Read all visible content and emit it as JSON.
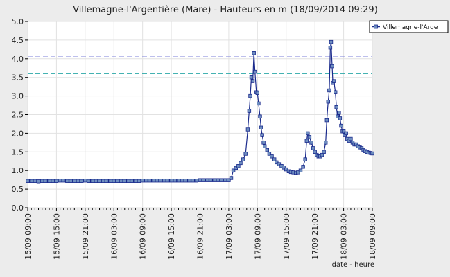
{
  "chart_data": {
    "type": "line",
    "title": "Villemagne-l'Argentière (Mare) - Hauteurs en m (18/09/2014 09:29)",
    "xlabel": "date - heure",
    "ylabel": "",
    "ylim": [
      0.0,
      5.0
    ],
    "y_ticks": [
      "0.0",
      "0.5",
      "1.0",
      "1.5",
      "2.0",
      "2.5",
      "3.0",
      "3.5",
      "4.0",
      "4.5",
      "5.0"
    ],
    "x_ticks": [
      "15/09 09:00",
      "15/09 15:00",
      "15/09 21:00",
      "16/09 03:00",
      "16/09 09:00",
      "16/09 15:00",
      "16/09 21:00",
      "17/09 03:00",
      "17/09 09:00",
      "17/09 15:00",
      "17/09 21:00",
      "18/09 03:00",
      "18/09 09:00"
    ],
    "x_range": [
      "15/09 09:00",
      "18/09 09:00"
    ],
    "grid": true,
    "legend_position": "top-right",
    "reference_lines": [
      {
        "value": 4.05,
        "color": "#7b7fd8",
        "style": "dashed"
      },
      {
        "value": 3.6,
        "color": "#2aa7a7",
        "style": "dashed"
      }
    ],
    "series": [
      {
        "name": "Villemagne-l'Arge",
        "color": "#1a2a8c",
        "marker_color": "#6f8fc0",
        "hours_from": "15/09 09:00",
        "points": [
          [
            0,
            0.72
          ],
          [
            1,
            0.72
          ],
          [
            2,
            0.72
          ],
          [
            3,
            0.71
          ],
          [
            4,
            0.72
          ],
          [
            5,
            0.72
          ],
          [
            6,
            0.72
          ],
          [
            7,
            0.72
          ],
          [
            8,
            0.72
          ],
          [
            9,
            0.73
          ],
          [
            10,
            0.73
          ],
          [
            11,
            0.72
          ],
          [
            12,
            0.72
          ],
          [
            13,
            0.72
          ],
          [
            14,
            0.72
          ],
          [
            15,
            0.72
          ],
          [
            16,
            0.73
          ],
          [
            17,
            0.72
          ],
          [
            18,
            0.72
          ],
          [
            19,
            0.72
          ],
          [
            20,
            0.72
          ],
          [
            21,
            0.72
          ],
          [
            22,
            0.72
          ],
          [
            23,
            0.72
          ],
          [
            24,
            0.72
          ],
          [
            25,
            0.72
          ],
          [
            26,
            0.72
          ],
          [
            27,
            0.72
          ],
          [
            28,
            0.72
          ],
          [
            29,
            0.72
          ],
          [
            30,
            0.72
          ],
          [
            31,
            0.72
          ],
          [
            32,
            0.73
          ],
          [
            33,
            0.73
          ],
          [
            34,
            0.73
          ],
          [
            35,
            0.73
          ],
          [
            36,
            0.73
          ],
          [
            37,
            0.73
          ],
          [
            38,
            0.73
          ],
          [
            39,
            0.73
          ],
          [
            40,
            0.73
          ],
          [
            41,
            0.73
          ],
          [
            42,
            0.73
          ],
          [
            43,
            0.73
          ],
          [
            44,
            0.73
          ],
          [
            45,
            0.73
          ],
          [
            46,
            0.73
          ],
          [
            47,
            0.73
          ],
          [
            48,
            0.74
          ],
          [
            49,
            0.74
          ],
          [
            50,
            0.74
          ],
          [
            51,
            0.74
          ],
          [
            52,
            0.74
          ],
          [
            53,
            0.74
          ],
          [
            54,
            0.74
          ],
          [
            55,
            0.74
          ],
          [
            56,
            0.74
          ],
          [
            56.7,
            0.8
          ],
          [
            57.3,
            1.0
          ],
          [
            58,
            1.07
          ],
          [
            58.7,
            1.12
          ],
          [
            59.3,
            1.2
          ],
          [
            60,
            1.3
          ],
          [
            60.7,
            1.45
          ],
          [
            61.3,
            2.1
          ],
          [
            61.7,
            2.6
          ],
          [
            62,
            3.0
          ],
          [
            62.3,
            3.5
          ],
          [
            62.7,
            3.4
          ],
          [
            63,
            4.15
          ],
          [
            63.3,
            3.65
          ],
          [
            63.7,
            3.1
          ],
          [
            64,
            3.08
          ],
          [
            64.3,
            2.8
          ],
          [
            64.7,
            2.45
          ],
          [
            65,
            2.15
          ],
          [
            65.3,
            1.95
          ],
          [
            65.7,
            1.75
          ],
          [
            66,
            1.65
          ],
          [
            66.7,
            1.55
          ],
          [
            67.3,
            1.45
          ],
          [
            68,
            1.38
          ],
          [
            68.7,
            1.3
          ],
          [
            69.3,
            1.22
          ],
          [
            70,
            1.17
          ],
          [
            70.7,
            1.12
          ],
          [
            71.3,
            1.08
          ],
          [
            72,
            1.03
          ],
          [
            72.7,
            0.98
          ],
          [
            73.3,
            0.96
          ],
          [
            74,
            0.95
          ],
          [
            74.7,
            0.94
          ],
          [
            75.3,
            0.95
          ],
          [
            76,
            1.0
          ],
          [
            76.7,
            1.1
          ],
          [
            77.3,
            1.3
          ],
          [
            77.7,
            1.8
          ],
          [
            78,
            2.0
          ],
          [
            78.5,
            1.9
          ],
          [
            79,
            1.75
          ],
          [
            79.5,
            1.6
          ],
          [
            80,
            1.5
          ],
          [
            80.5,
            1.42
          ],
          [
            81,
            1.38
          ],
          [
            81.5,
            1.38
          ],
          [
            82,
            1.42
          ],
          [
            82.5,
            1.5
          ],
          [
            83,
            1.75
          ],
          [
            83.3,
            2.35
          ],
          [
            83.7,
            2.85
          ],
          [
            84,
            3.15
          ],
          [
            84.3,
            4.3
          ],
          [
            84.5,
            4.45
          ],
          [
            84.8,
            3.8
          ],
          [
            85,
            3.35
          ],
          [
            85.3,
            3.4
          ],
          [
            85.7,
            3.1
          ],
          [
            86,
            2.7
          ],
          [
            86.3,
            2.45
          ],
          [
            86.7,
            2.55
          ],
          [
            87,
            2.4
          ],
          [
            87.3,
            2.2
          ],
          [
            87.7,
            2.05
          ],
          [
            88,
            2.05
          ],
          [
            88.3,
            1.95
          ],
          [
            88.7,
            2.0
          ],
          [
            89,
            1.85
          ],
          [
            89.5,
            1.8
          ],
          [
            90,
            1.85
          ],
          [
            90.5,
            1.75
          ],
          [
            91,
            1.7
          ],
          [
            91.5,
            1.7
          ],
          [
            92,
            1.65
          ],
          [
            92.5,
            1.62
          ],
          [
            93,
            1.6
          ],
          [
            93.5,
            1.55
          ],
          [
            94,
            1.52
          ],
          [
            94.5,
            1.5
          ],
          [
            95,
            1.48
          ],
          [
            95.5,
            1.47
          ],
          [
            96,
            1.46
          ]
        ]
      }
    ]
  }
}
